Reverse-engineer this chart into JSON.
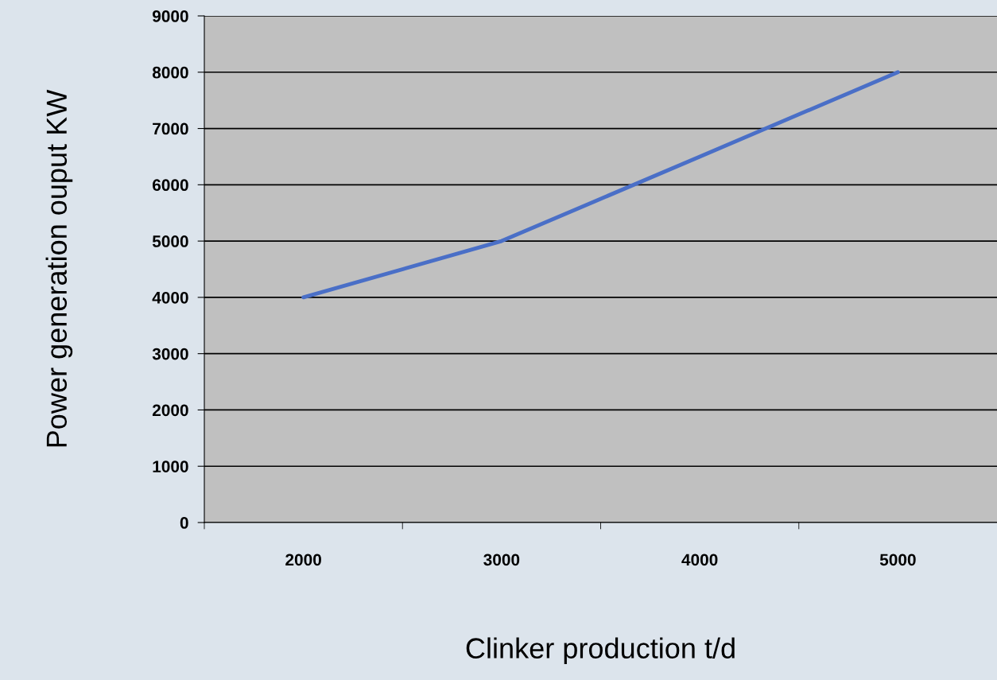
{
  "chart_data": {
    "type": "line",
    "xlabel": "Clinker production t/d",
    "ylabel": "Power generation ouput KW",
    "categories": [
      "2000",
      "3000",
      "4000",
      "5000"
    ],
    "series": [
      {
        "color": "#4a6fc7",
        "values": [
          4000,
          5000,
          6500,
          8000
        ]
      }
    ],
    "ylim": [
      0,
      9000
    ],
    "yticks": [
      0,
      1000,
      2000,
      3000,
      4000,
      5000,
      6000,
      7000,
      8000,
      9000
    ],
    "grid": "y",
    "marker": "none",
    "line_style": "solid"
  }
}
